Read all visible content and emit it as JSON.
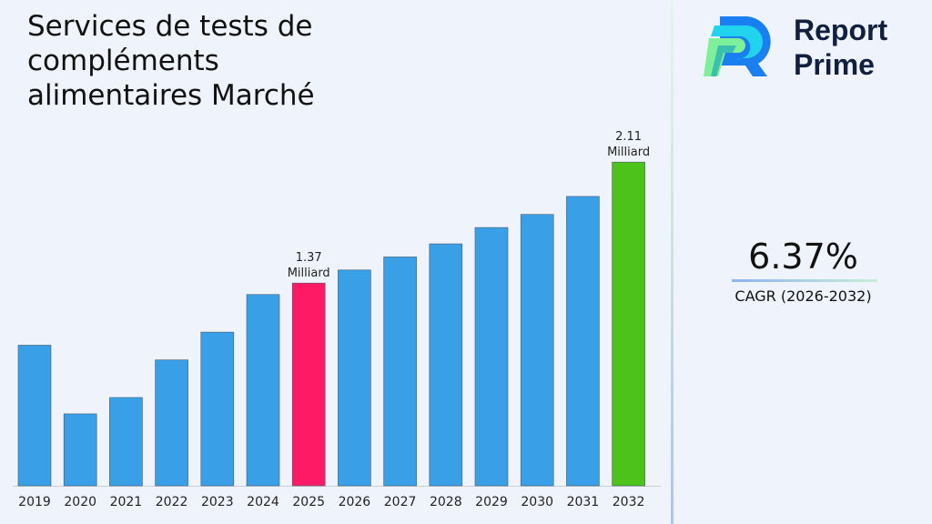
{
  "title": "Services de tests de compléments alimentaires Marché",
  "logo": {
    "line1": "Report",
    "line2": "Prime"
  },
  "cagr": {
    "value": "6.37%",
    "label": "CAGR (2026-2032)"
  },
  "colors": {
    "default_bar": "#39a0e8",
    "highlight_start": "#ff1a66",
    "highlight_end": "#4cc21a",
    "background": "#eef3fc"
  },
  "chart_data": {
    "type": "bar",
    "title": "Services de tests de compléments alimentaires Marché",
    "categories": [
      "2019",
      "2020",
      "2021",
      "2022",
      "2023",
      "2024",
      "2025",
      "2026",
      "2027",
      "2028",
      "2029",
      "2030",
      "2031",
      "2032"
    ],
    "values": [
      0.99,
      0.57,
      0.67,
      0.9,
      1.07,
      1.3,
      1.37,
      1.45,
      1.53,
      1.61,
      1.71,
      1.79,
      1.9,
      2.11
    ],
    "unit": "Milliard",
    "data_labels": [
      {
        "category": "2025",
        "line1": "1.37",
        "line2": "Milliard"
      },
      {
        "category": "2032",
        "line1": "2.11",
        "line2": "Milliard"
      }
    ],
    "ylim": [
      0.13,
      2.2
    ],
    "grid": false,
    "xlabel": "",
    "ylabel": ""
  }
}
